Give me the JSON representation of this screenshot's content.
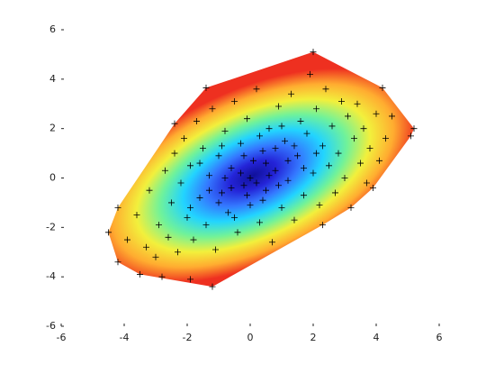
{
  "chart_data": {
    "type": "scatter",
    "xlim": [
      -6,
      6
    ],
    "ylim": [
      -6,
      6
    ],
    "xticks": [
      -6,
      -4,
      -2,
      0,
      2,
      4,
      6
    ],
    "yticks": [
      -6,
      -4,
      -2,
      0,
      2,
      4,
      6
    ],
    "color": "#000000",
    "colormap": [
      "#10109a",
      "#2424d8",
      "#3478ff",
      "#22d4ff",
      "#70f29a",
      "#f2f03c",
      "#ffac30",
      "#ee3020"
    ],
    "x": [
      -4.5,
      -4.2,
      -4.2,
      -3.5,
      -1.2,
      -2.4,
      -1.4,
      2,
      4.2,
      5.2,
      5.1,
      2.3,
      3.9,
      4.5,
      -1.9,
      -2.8,
      -3.9,
      -3.6,
      -3.3,
      -3.2,
      -3,
      -2.9,
      -2.7,
      -2.6,
      -2.5,
      -2.4,
      -2.3,
      -2.2,
      -2.1,
      -2,
      -1.9,
      -1.8,
      -1.7,
      -1.6,
      -1.5,
      -1.4,
      -1.3,
      -1.2,
      -1.1,
      -1,
      -0.9,
      -0.8,
      -0.7,
      -0.6,
      -0.5,
      -0.4,
      -0.3,
      -0.2,
      -0.1,
      0,
      0.1,
      0.2,
      0.3,
      0.4,
      0.5,
      0.6,
      0.7,
      0.8,
      0.9,
      1,
      1.1,
      1.2,
      1.3,
      1.4,
      1.5,
      1.6,
      1.7,
      1.8,
      1.9,
      2,
      2.1,
      2.2,
      2.3,
      2.4,
      2.5,
      2.6,
      2.7,
      2.8,
      2.9,
      3,
      3.1,
      3.2,
      3.3,
      3.4,
      3.5,
      3.6,
      3.7,
      3.8,
      4,
      4.1,
      4.3,
      -0.3,
      0.2,
      0.5,
      -0.6,
      0.8,
      -1,
      1.2,
      -0.2,
      0,
      0.4,
      -0.8,
      0.9,
      -1.3,
      1.4,
      -0.5,
      0.3,
      -1.6,
      1.7,
      -0.1,
      0.6,
      -0.9,
      1,
      -1.9,
      2.1
    ],
    "values": [
      -2.2,
      -1.2,
      -3.4,
      -3.9,
      -4.4,
      2.2,
      3.65,
      5.1,
      3.65,
      2,
      1.7,
      -1.9,
      -0.4,
      2.5,
      -4.1,
      -4,
      -2.5,
      -1.5,
      -2.8,
      -0.5,
      -3.2,
      -1.9,
      0.3,
      -2.4,
      -1,
      1,
      -3,
      -0.2,
      1.6,
      -1.6,
      0.5,
      -2.5,
      2.3,
      -0.8,
      1.2,
      -1.9,
      0.1,
      2.8,
      -2.9,
      0.9,
      -0.6,
      1.9,
      -1.4,
      0.4,
      3.1,
      -2.2,
      1.4,
      -0.3,
      2.4,
      -1.1,
      0.7,
      3.6,
      -1.8,
      1.1,
      -0.5,
      2,
      -2.6,
      0.3,
      2.9,
      -1.2,
      1.5,
      -0.1,
      3.4,
      -1.7,
      0.9,
      2.3,
      -0.7,
      1.8,
      4.2,
      0.2,
      2.8,
      -1.1,
      1.3,
      3.6,
      0.5,
      2.1,
      -0.6,
      1,
      3.1,
      0,
      2.5,
      -1.2,
      1.6,
      3,
      0.6,
      2,
      -0.2,
      1.2,
      2.6,
      0.7,
      1.6,
      0.2,
      -0.2,
      0.6,
      -0.4,
      1.2,
      -1,
      0.7,
      0.9,
      0,
      -0.9,
      0,
      -0.3,
      -0.5,
      1.3,
      -1.6,
      1.7,
      0.6,
      0.4,
      -0.7,
      0.1,
      1.3,
      2.1,
      -1.2,
      1
    ]
  }
}
